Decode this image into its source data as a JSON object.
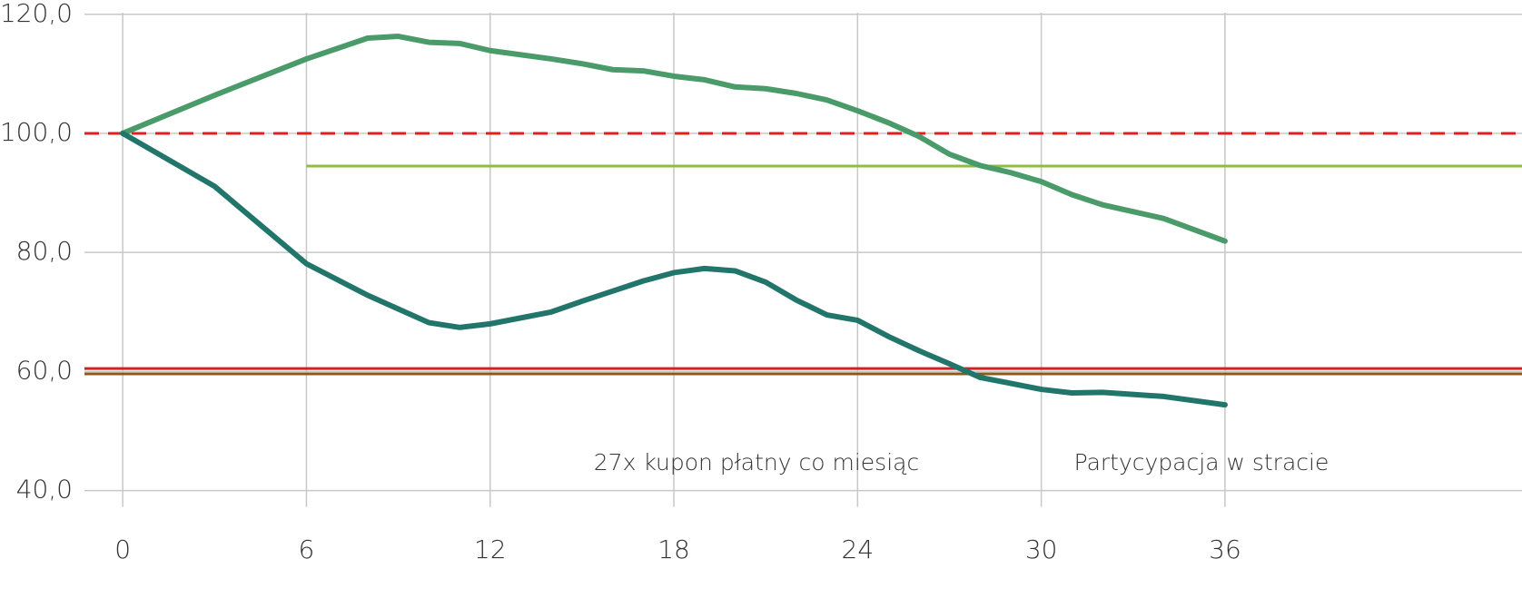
{
  "chart_data": {
    "type": "line",
    "x": [
      0,
      3,
      6,
      8,
      9,
      10,
      11,
      12,
      14,
      15,
      16,
      17,
      18,
      19,
      20,
      21,
      22,
      23,
      24,
      25,
      26,
      27,
      28,
      29,
      30,
      31,
      32,
      34,
      36
    ],
    "series": [
      {
        "color": "#4a9a6a",
        "values": [
          100,
          106.4,
          112.5,
          116,
          116.3,
          115.3,
          115.1,
          113.9,
          112.5,
          111.7,
          110.7,
          110.5,
          109.6,
          109,
          107.8,
          107.5,
          106.7,
          105.6,
          103.8,
          101.8,
          99.5,
          96.5,
          94.6,
          93.4,
          91.9,
          89.7,
          88,
          85.7,
          81.9
        ]
      },
      {
        "color": "#22756b",
        "values": [
          100,
          91.1,
          78.1,
          72.8,
          70.5,
          68.2,
          67.4,
          68,
          70,
          71.8,
          73.5,
          75.2,
          76.6,
          77.3,
          76.9,
          75,
          72,
          69.5,
          68.6,
          65.9,
          63.5,
          61.3,
          59,
          58,
          57,
          56.4,
          56.5,
          55.8,
          54.4
        ]
      }
    ],
    "reference_lines": [
      {
        "value": 100,
        "color": "#e02020",
        "dashed": true
      },
      {
        "value": 94.5,
        "x_start": 6,
        "color": "#8cbf3f"
      },
      {
        "value": 60.5,
        "color": "#d42020"
      },
      {
        "value": 59.6,
        "color": "#8b5a1a"
      }
    ],
    "annotations": [
      "27x kupon płatny co miesiąc",
      "Partycypacja w stracie"
    ],
    "xlim": [
      -1.25,
      45.7
    ],
    "ylim": [
      37.8,
      122.4
    ],
    "xticks": [
      0,
      6,
      12,
      18,
      24,
      30,
      36
    ],
    "yticks": [
      {
        "value": 40,
        "label": "40,0"
      },
      {
        "value": 60,
        "label": "60,0"
      },
      {
        "value": 80,
        "label": "80,0"
      },
      {
        "value": 100,
        "label": "100,0"
      },
      {
        "value": 120,
        "label": "120,0"
      }
    ],
    "grid": true
  }
}
